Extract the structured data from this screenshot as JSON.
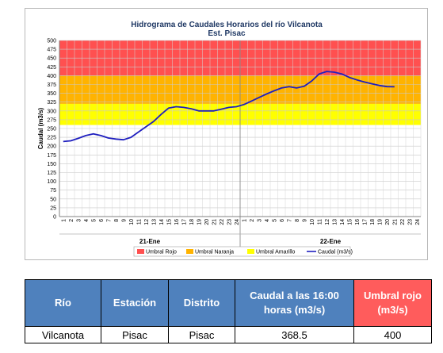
{
  "chart_data": {
    "type": "line",
    "title": "Hidrograma de Caudales Horarios del río Vilcanota",
    "subtitle": "Est. Pisac",
    "ylabel": "Caudal (m3/s)",
    "ylim": [
      0,
      500
    ],
    "yticks": [
      0,
      25,
      50,
      75,
      100,
      125,
      150,
      175,
      200,
      225,
      250,
      275,
      300,
      325,
      350,
      375,
      400,
      425,
      450,
      475,
      500
    ],
    "xticks_day1": [
      "1",
      "2",
      "3",
      "4",
      "5",
      "6",
      "7",
      "8",
      "9",
      "10",
      "11",
      "12",
      "13",
      "14",
      "15",
      "16",
      "17",
      "18",
      "19",
      "20",
      "21",
      "22",
      "23",
      "24"
    ],
    "xticks_day2": [
      "1",
      "2",
      "3",
      "4",
      "5",
      "6",
      "7",
      "8",
      "9",
      "10",
      "11",
      "12",
      "13",
      "14",
      "15",
      "16",
      "17",
      "18",
      "19",
      "20",
      "21",
      "22",
      "23",
      "24"
    ],
    "days": [
      "21-Ene",
      "22-Ene"
    ],
    "grid": true,
    "bands": [
      {
        "name": "Umbral Rojo",
        "from": 400,
        "to": 500,
        "color": "#ff5050"
      },
      {
        "name": "Umbral Naranja",
        "from": 320,
        "to": 400,
        "color": "#ffb300"
      },
      {
        "name": "Umbral Amarillo",
        "from": 260,
        "to": 320,
        "color": "#ffff00"
      }
    ],
    "series": [
      {
        "name": "Caudal (m3/s)",
        "color": "#1f1fbf",
        "values": [
          213,
          215,
          222,
          230,
          235,
          230,
          223,
          220,
          218,
          225,
          240,
          255,
          270,
          290,
          308,
          312,
          310,
          306,
          300,
          300,
          300,
          305,
          310,
          312,
          318,
          328,
          338,
          348,
          357,
          365,
          369,
          365,
          370,
          385,
          405,
          412,
          410,
          405,
          395,
          388,
          382,
          377,
          372,
          369,
          368.5
        ]
      }
    ],
    "legend": [
      "Umbral Rojo",
      "Umbral Naranja",
      "Umbral Amarillo",
      "Caudal (m3/s)"
    ],
    "legend_position": "bottom"
  },
  "table": {
    "headers": [
      "Río",
      "Estación",
      "Distrito",
      "Caudal a las 16:00 horas (m3/s)",
      "Umbral rojo (m3/s)"
    ],
    "row": [
      "Vilcanota",
      "Pisac",
      "Pisac",
      "368.5",
      "400"
    ]
  }
}
